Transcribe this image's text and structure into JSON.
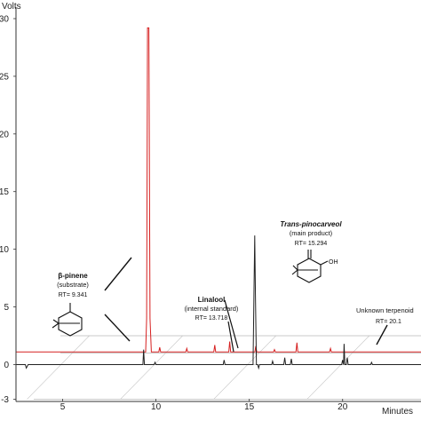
{
  "chart_data": {
    "type": "line",
    "ylabel": "Volts",
    "xlabel": "Minutes",
    "xlim": [
      2.5,
      24.2
    ],
    "ylim": [
      -3.2,
      31
    ],
    "xticks": [
      5,
      10,
      15,
      20
    ],
    "yticks": [
      -3,
      0,
      5,
      10,
      15,
      20,
      25,
      30
    ],
    "grid": true,
    "series": [
      {
        "color": "#d62020",
        "baseline": 1.1,
        "points": [
          [
            2.5,
            1.1
          ],
          [
            9.0,
            1.1
          ],
          [
            9.45,
            1.1
          ],
          [
            9.5,
            4.0
          ],
          [
            9.55,
            29.2
          ],
          [
            9.62,
            29.2
          ],
          [
            9.68,
            4.0
          ],
          [
            9.75,
            1.1
          ],
          [
            10.15,
            1.1
          ],
          [
            10.2,
            1.5
          ],
          [
            10.25,
            1.1
          ],
          [
            11.6,
            1.1
          ],
          [
            11.65,
            1.4
          ],
          [
            11.7,
            1.1
          ],
          [
            13.1,
            1.1
          ],
          [
            13.15,
            1.7
          ],
          [
            13.2,
            1.1
          ],
          [
            13.9,
            1.1
          ],
          [
            13.95,
            2.0
          ],
          [
            14.0,
            1.1
          ],
          [
            15.3,
            1.1
          ],
          [
            15.35,
            1.6
          ],
          [
            15.4,
            1.1
          ],
          [
            16.3,
            1.1
          ],
          [
            16.35,
            1.3
          ],
          [
            16.4,
            1.1
          ],
          [
            17.5,
            1.1
          ],
          [
            17.55,
            1.9
          ],
          [
            17.6,
            1.1
          ],
          [
            19.3,
            1.1
          ],
          [
            19.35,
            1.4
          ],
          [
            19.4,
            1.1
          ],
          [
            24.2,
            1.1
          ]
        ]
      },
      {
        "color": "#222222",
        "baseline": 0,
        "points": [
          [
            2.5,
            0
          ],
          [
            3.0,
            0
          ],
          [
            3.05,
            -0.3
          ],
          [
            3.15,
            0
          ],
          [
            9.0,
            0
          ],
          [
            9.3,
            0
          ],
          [
            9.34,
            1.3
          ],
          [
            9.38,
            0
          ],
          [
            9.9,
            0
          ],
          [
            9.95,
            0.2
          ],
          [
            10.0,
            0
          ],
          [
            13.6,
            0
          ],
          [
            13.65,
            0.4
          ],
          [
            13.7,
            0
          ],
          [
            15.2,
            0
          ],
          [
            15.25,
            6.0
          ],
          [
            15.29,
            11.2
          ],
          [
            15.33,
            6.0
          ],
          [
            15.38,
            0
          ],
          [
            15.45,
            0
          ],
          [
            15.5,
            -0.3
          ],
          [
            15.55,
            0
          ],
          [
            16.2,
            0
          ],
          [
            16.25,
            0.3
          ],
          [
            16.3,
            0
          ],
          [
            16.85,
            0
          ],
          [
            16.9,
            0.6
          ],
          [
            16.95,
            0
          ],
          [
            17.2,
            0
          ],
          [
            17.25,
            0.5
          ],
          [
            17.3,
            0
          ],
          [
            19.95,
            0
          ],
          [
            20.0,
            0.4
          ],
          [
            20.05,
            0
          ],
          [
            20.08,
            1.8
          ],
          [
            20.12,
            0
          ],
          [
            20.2,
            0
          ],
          [
            20.25,
            0.6
          ],
          [
            20.3,
            0
          ],
          [
            21.5,
            0
          ],
          [
            21.55,
            0.2
          ],
          [
            21.6,
            0
          ],
          [
            24.2,
            0
          ]
        ]
      }
    ],
    "annotations": [
      {
        "title": "β-pinene",
        "subtitle": "(substrate)",
        "rt": "RT= 9.341"
      },
      {
        "title": "Linalool",
        "subtitle": "(internal standard)",
        "rt": "RT= 13.718"
      },
      {
        "title": "Trans-pinocarveol",
        "subtitle": "(main product)",
        "rt": "RT= 15.294"
      },
      {
        "title": "Unknown terpenoid",
        "subtitle": "",
        "rt": "RT= 20.1"
      }
    ],
    "molecule_label": "OH"
  }
}
